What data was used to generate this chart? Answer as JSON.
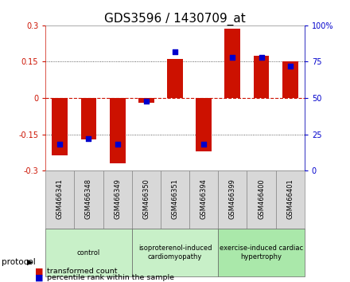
{
  "title": "GDS3596 / 1430709_at",
  "samples": [
    "GSM466341",
    "GSM466348",
    "GSM466349",
    "GSM466350",
    "GSM466351",
    "GSM466394",
    "GSM466399",
    "GSM466400",
    "GSM466401"
  ],
  "transformed_count": [
    -0.235,
    -0.17,
    -0.27,
    -0.02,
    0.16,
    -0.22,
    0.285,
    0.175,
    0.15
  ],
  "percentile_rank": [
    18,
    22,
    18,
    48,
    82,
    18,
    78,
    78,
    72
  ],
  "ylim_left": [
    -0.3,
    0.3
  ],
  "yticks_left": [
    -0.3,
    -0.15,
    0,
    0.15,
    0.3
  ],
  "ytick_labels_left": [
    "-0.3",
    "-0.15",
    "0",
    "0.15",
    "0.3"
  ],
  "ylim_right": [
    0,
    100
  ],
  "yticks_right": [
    0,
    25,
    50,
    75,
    100
  ],
  "ytick_labels_right": [
    "0",
    "25",
    "50",
    "75",
    "100%"
  ],
  "bar_color": "#cc1100",
  "dot_color": "#0000cc",
  "hline_color": "#cc1100",
  "groups": [
    {
      "label": "control",
      "start": 0,
      "end": 3,
      "color": "#c8f0c8"
    },
    {
      "label": "isoproterenol-induced\ncardiomyopathy",
      "start": 3,
      "end": 6,
      "color": "#c8f0c8"
    },
    {
      "label": "exercise-induced cardiac\nhypertrophy",
      "start": 6,
      "end": 9,
      "color": "#aae8aa"
    }
  ],
  "protocol_label": "protocol",
  "legend_items": [
    {
      "label": "transformed count",
      "color": "#cc1100"
    },
    {
      "label": "percentile rank within the sample",
      "color": "#0000cc"
    }
  ],
  "bar_width": 0.55,
  "bg_color": "#ffffff",
  "plot_bg_color": "#ffffff",
  "title_fontsize": 11,
  "tick_fontsize": 7,
  "label_fontsize": 7.5
}
